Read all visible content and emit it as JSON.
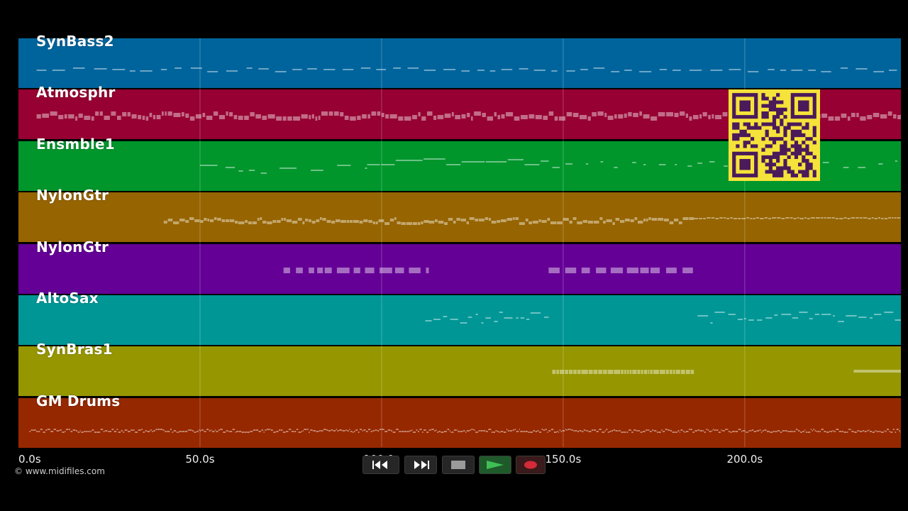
{
  "copyright": "© www.midifiles.com",
  "axis": {
    "ticks": [
      {
        "value": 0,
        "label": "0.0s"
      },
      {
        "value": 50,
        "label": "50.0s"
      },
      {
        "value": 100,
        "label": "100.0s"
      },
      {
        "value": 150,
        "label": "150.0s"
      },
      {
        "value": 200,
        "label": "200.0s"
      }
    ],
    "range": [
      0,
      243
    ]
  },
  "tracks": [
    {
      "name": "SynBass2",
      "color": "#00649c"
    },
    {
      "name": "Atmosphr",
      "color": "#960032"
    },
    {
      "name": "Ensmble1",
      "color": "#00962c"
    },
    {
      "name": "NylonGtr",
      "color": "#966400"
    },
    {
      "name": "NylonGtr",
      "color": "#640096"
    },
    {
      "name": "AltoSax",
      "color": "#009696"
    },
    {
      "name": "SynBras1",
      "color": "#969600"
    },
    {
      "name": "GM Drums",
      "color": "#962800"
    }
  ],
  "transport": {
    "buttons": [
      {
        "name": "rewind-button",
        "icon": "rewind-icon"
      },
      {
        "name": "fast-forward-button",
        "icon": "fast-forward-icon"
      },
      {
        "name": "stop-button",
        "icon": "stop-icon"
      },
      {
        "name": "play-button",
        "icon": "play-icon"
      },
      {
        "name": "record-button",
        "icon": "record-icon"
      }
    ]
  },
  "colors": {
    "background": "#000000",
    "qr_bg": "#f5e23a",
    "qr_fg": "#4a1a5a",
    "play": "#2a8a3a",
    "record": "#d42a3a"
  }
}
